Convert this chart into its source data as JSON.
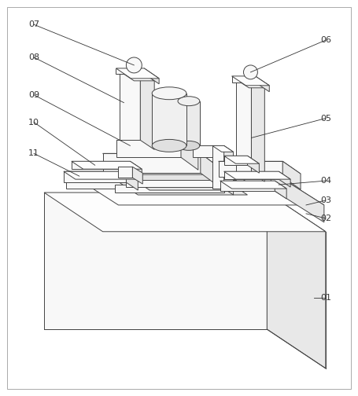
{
  "figure_size": [
    4.55,
    5.04
  ],
  "dpi": 100,
  "bg_color": "#ffffff",
  "line_color": "#444444",
  "line_width": 0.7,
  "fc_white": "#ffffff",
  "fc_light": "#f0f0f0",
  "fc_mid": "#e0e0e0",
  "fc_dark": "#cccccc",
  "fc_front": "#f8f8f8",
  "fc_right": "#e8e8e8",
  "fc_top": "#fdfdfd",
  "label_fontsize": 8,
  "label_color": "#333333",
  "border_color": "#888888",
  "border_lw": 0.5
}
